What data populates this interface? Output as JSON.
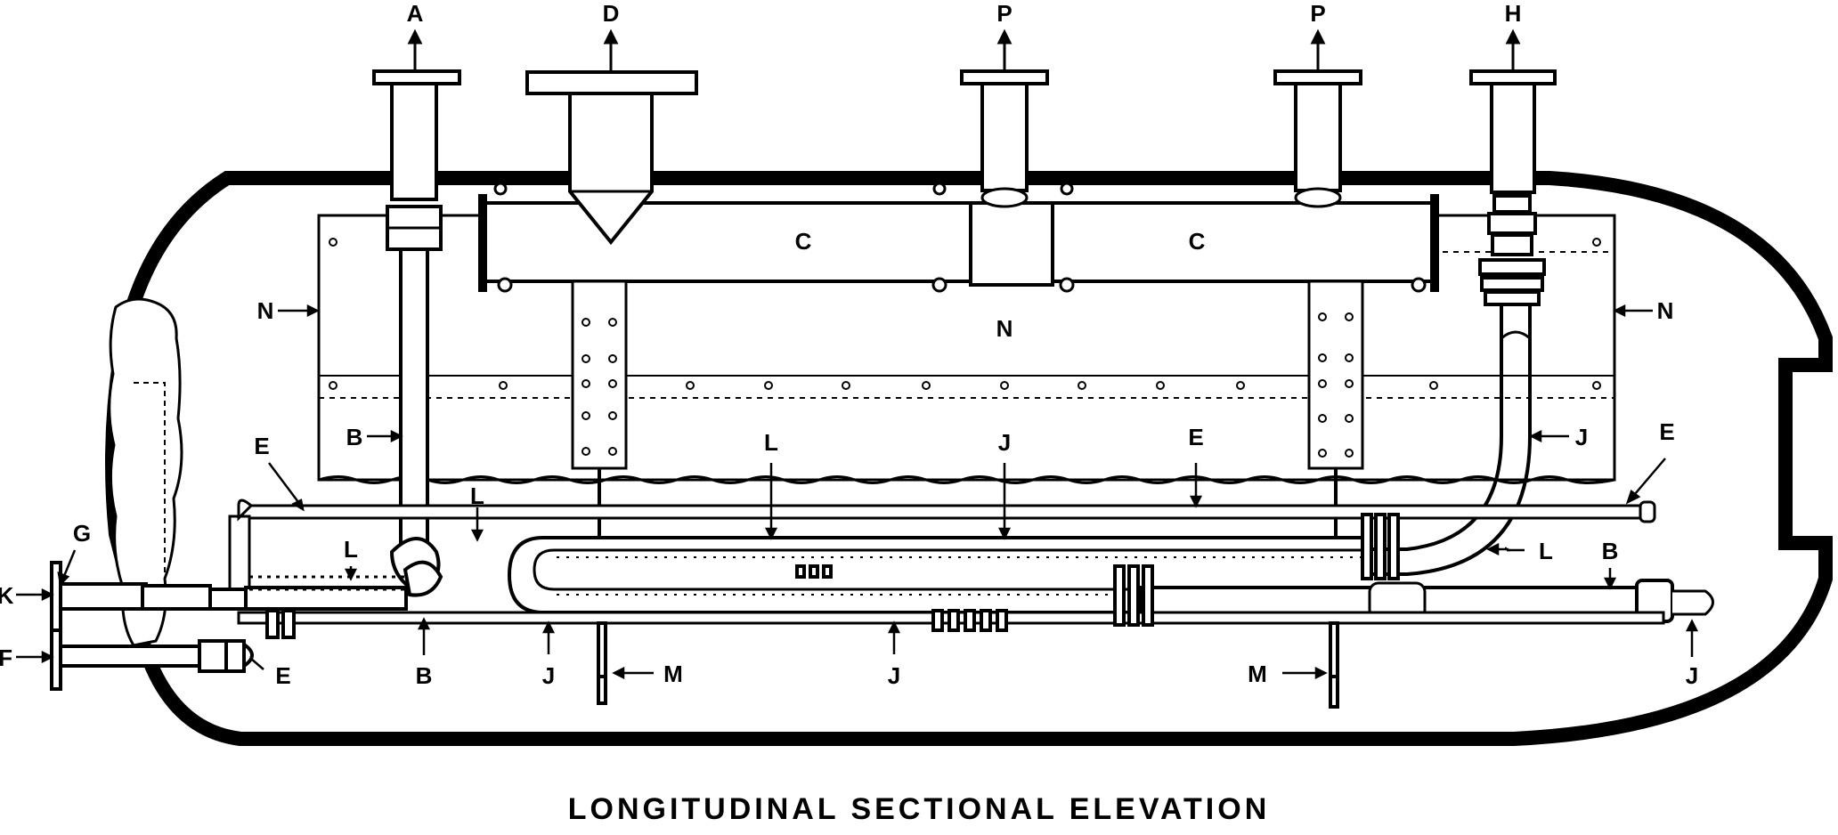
{
  "caption": "LONGITUDINAL SECTIONAL ELEVATION",
  "labels": {
    "A": "A",
    "D": "D",
    "P1": "P",
    "P2": "P",
    "H": "H",
    "C1": "C",
    "C2": "C",
    "N_left": "N",
    "N_center": "N",
    "N_right": "N",
    "E_left": "E",
    "E_mid": "E",
    "E_right": "E",
    "E_bottom": "E",
    "B_left": "B",
    "B_bottom": "B",
    "B_right": "B",
    "L_upper": "L",
    "L_left": "L",
    "L_center": "L",
    "L_right": "L",
    "J_center": "J",
    "J_right": "J",
    "J_bottom1": "J",
    "J_bottom2": "J",
    "J_bottom3": "J",
    "G": "G",
    "K": "K",
    "F": "F",
    "M1": "M",
    "M2": "M"
  },
  "colors": {
    "ink": "#000000",
    "paper": "#ffffff"
  }
}
